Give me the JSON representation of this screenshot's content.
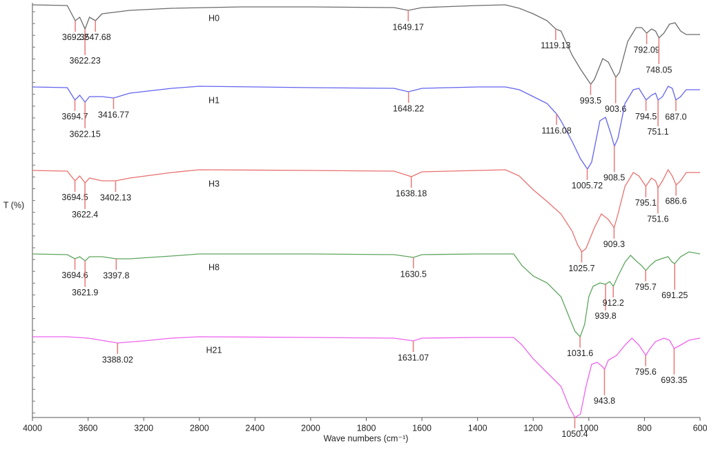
{
  "chart_data": {
    "type": "line",
    "x_label": "Wave numbers (cm⁻¹)",
    "y_label": "T (%)",
    "xlim": [
      4000,
      600
    ],
    "xticks": [
      4000,
      3600,
      3200,
      2800,
      2400,
      2000,
      1800,
      1600,
      1400,
      1200,
      1000,
      800,
      600
    ],
    "ylim": [
      0,
      600
    ],
    "peak_color": "#e87a78",
    "series": [
      {
        "name": "H0",
        "color": "#6b6b6b",
        "x": [
          4000,
          3750,
          3692,
          3660,
          3622,
          3590,
          3547,
          3500,
          3300,
          3000,
          2500,
          2000,
          1700,
          1649,
          1600,
          1400,
          1300,
          1250,
          1200,
          1150,
          1119,
          1100,
          1060,
          1030,
          1000,
          993,
          980,
          950,
          930,
          903,
          890,
          860,
          830,
          810,
          792,
          775,
          760,
          748,
          730,
          710,
          690,
          670,
          650,
          600
        ],
        "values": [
          598,
          597,
          575,
          580,
          563,
          580,
          575,
          585,
          590,
          593,
          595,
          595,
          594,
          590,
          594,
          597,
          598,
          593,
          585,
          575,
          563,
          560,
          525,
          505,
          487,
          483,
          490,
          520,
          515,
          493,
          500,
          545,
          565,
          565,
          557,
          563,
          560,
          550,
          557,
          570,
          572,
          560,
          555,
          555
        ],
        "peaks": [
          3692.2,
          3622.23,
          3547.68,
          1649.17,
          1119.13,
          993.5,
          903.6,
          792.09,
          748.05
        ]
      },
      {
        "name": "H1",
        "color": "#6262ee",
        "x": [
          4000,
          3750,
          3694,
          3660,
          3622,
          3590,
          3500,
          3416,
          3300,
          3000,
          2800,
          2000,
          1700,
          1648,
          1600,
          1400,
          1300,
          1250,
          1200,
          1150,
          1116,
          1100,
          1060,
          1030,
          1005,
          990,
          960,
          940,
          920,
          908,
          895,
          870,
          840,
          820,
          794,
          775,
          760,
          751,
          735,
          715,
          700,
          687,
          670,
          650,
          600
        ],
        "values": [
          479,
          478,
          460,
          467,
          457,
          465,
          465,
          463,
          470,
          477,
          480,
          478,
          477,
          472,
          477,
          479,
          479,
          475,
          465,
          455,
          440,
          430,
          400,
          375,
          360,
          370,
          430,
          435,
          410,
          393,
          405,
          455,
          475,
          477,
          460,
          467,
          470,
          460,
          465,
          480,
          477,
          460,
          465,
          475,
          475
        ],
        "peaks": [
          3694.7,
          3622.15,
          3416.77,
          1648.22,
          1116.08,
          1005.72,
          908.5,
          794.5,
          751.1,
          {
            "value": 687,
            "label": "687.0"
          }
        ]
      },
      {
        "name": "H3",
        "color": "#e8706e",
        "x": [
          4000,
          3750,
          3694,
          3660,
          3622,
          3590,
          3500,
          3402,
          3300,
          3000,
          2800,
          2000,
          1700,
          1638,
          1600,
          1400,
          1300,
          1250,
          1200,
          1150,
          1100,
          1060,
          1040,
          1025,
          1010,
          980,
          955,
          930,
          909,
          895,
          870,
          840,
          820,
          795,
          775,
          760,
          751,
          735,
          715,
          700,
          686,
          670,
          650,
          600
        ],
        "values": [
          358,
          357,
          343,
          350,
          340,
          347,
          343,
          343,
          347,
          355,
          359,
          358,
          357,
          349,
          356,
          358,
          359,
          350,
          330,
          313,
          295,
          270,
          250,
          240,
          245,
          275,
          295,
          287,
          275,
          295,
          335,
          355,
          350,
          335,
          347,
          343,
          333,
          343,
          359,
          350,
          337,
          343,
          355,
          355
        ],
        "peaks": [
          3694.5,
          3622.4,
          3402.13,
          1638.18,
          1025.7,
          909.3,
          795.1,
          751.6,
          686.6
        ]
      },
      {
        "name": "H8",
        "color": "#5da55d",
        "x": [
          4000,
          3750,
          3694,
          3660,
          3621,
          3590,
          3500,
          3397,
          3300,
          3000,
          2800,
          2000,
          1700,
          1630,
          1600,
          1400,
          1270,
          1240,
          1200,
          1150,
          1100,
          1070,
          1050,
          1031,
          1015,
          1000,
          985,
          960,
          940,
          925,
          912,
          895,
          870,
          850,
          830,
          810,
          795,
          780,
          760,
          740,
          715,
          700,
          691,
          670,
          640,
          600
        ],
        "values": [
          237,
          236,
          230,
          233,
          227,
          233,
          233,
          230,
          230,
          234,
          237,
          237,
          236,
          232,
          236,
          237,
          237,
          220,
          205,
          195,
          175,
          145,
          125,
          117,
          135,
          175,
          190,
          195,
          193,
          197,
          190,
          205,
          225,
          235,
          227,
          220,
          213,
          220,
          227,
          230,
          233,
          225,
          223,
          233,
          240,
          237
        ],
        "peaks": [
          3694.6,
          3621.9,
          3397.8,
          1630.5,
          1031.6,
          939.8,
          912.2,
          795.7,
          691.25
        ]
      },
      {
        "name": "H21",
        "color": "#ee62ee",
        "x": [
          4000,
          3750,
          3600,
          3388,
          3200,
          3000,
          2800,
          2000,
          1700,
          1631,
          1600,
          1400,
          1270,
          1240,
          1200,
          1150,
          1100,
          1070,
          1050,
          1030,
          1010,
          990,
          970,
          955,
          943,
          930,
          900,
          870,
          845,
          820,
          795,
          780,
          760,
          730,
          710,
          693,
          670,
          640,
          600
        ],
        "values": [
          117,
          117,
          115,
          108,
          111,
          115,
          117,
          116,
          115,
          111,
          115,
          116,
          116,
          105,
          85,
          65,
          45,
          15,
          0,
          5,
          45,
          77,
          80,
          75,
          70,
          83,
          90,
          105,
          115,
          105,
          90,
          100,
          110,
          115,
          112,
          100,
          105,
          112,
          115
        ],
        "peaks": [
          3388.02,
          1631.07,
          1050.4,
          943.8,
          795.6,
          693.35
        ]
      }
    ]
  }
}
